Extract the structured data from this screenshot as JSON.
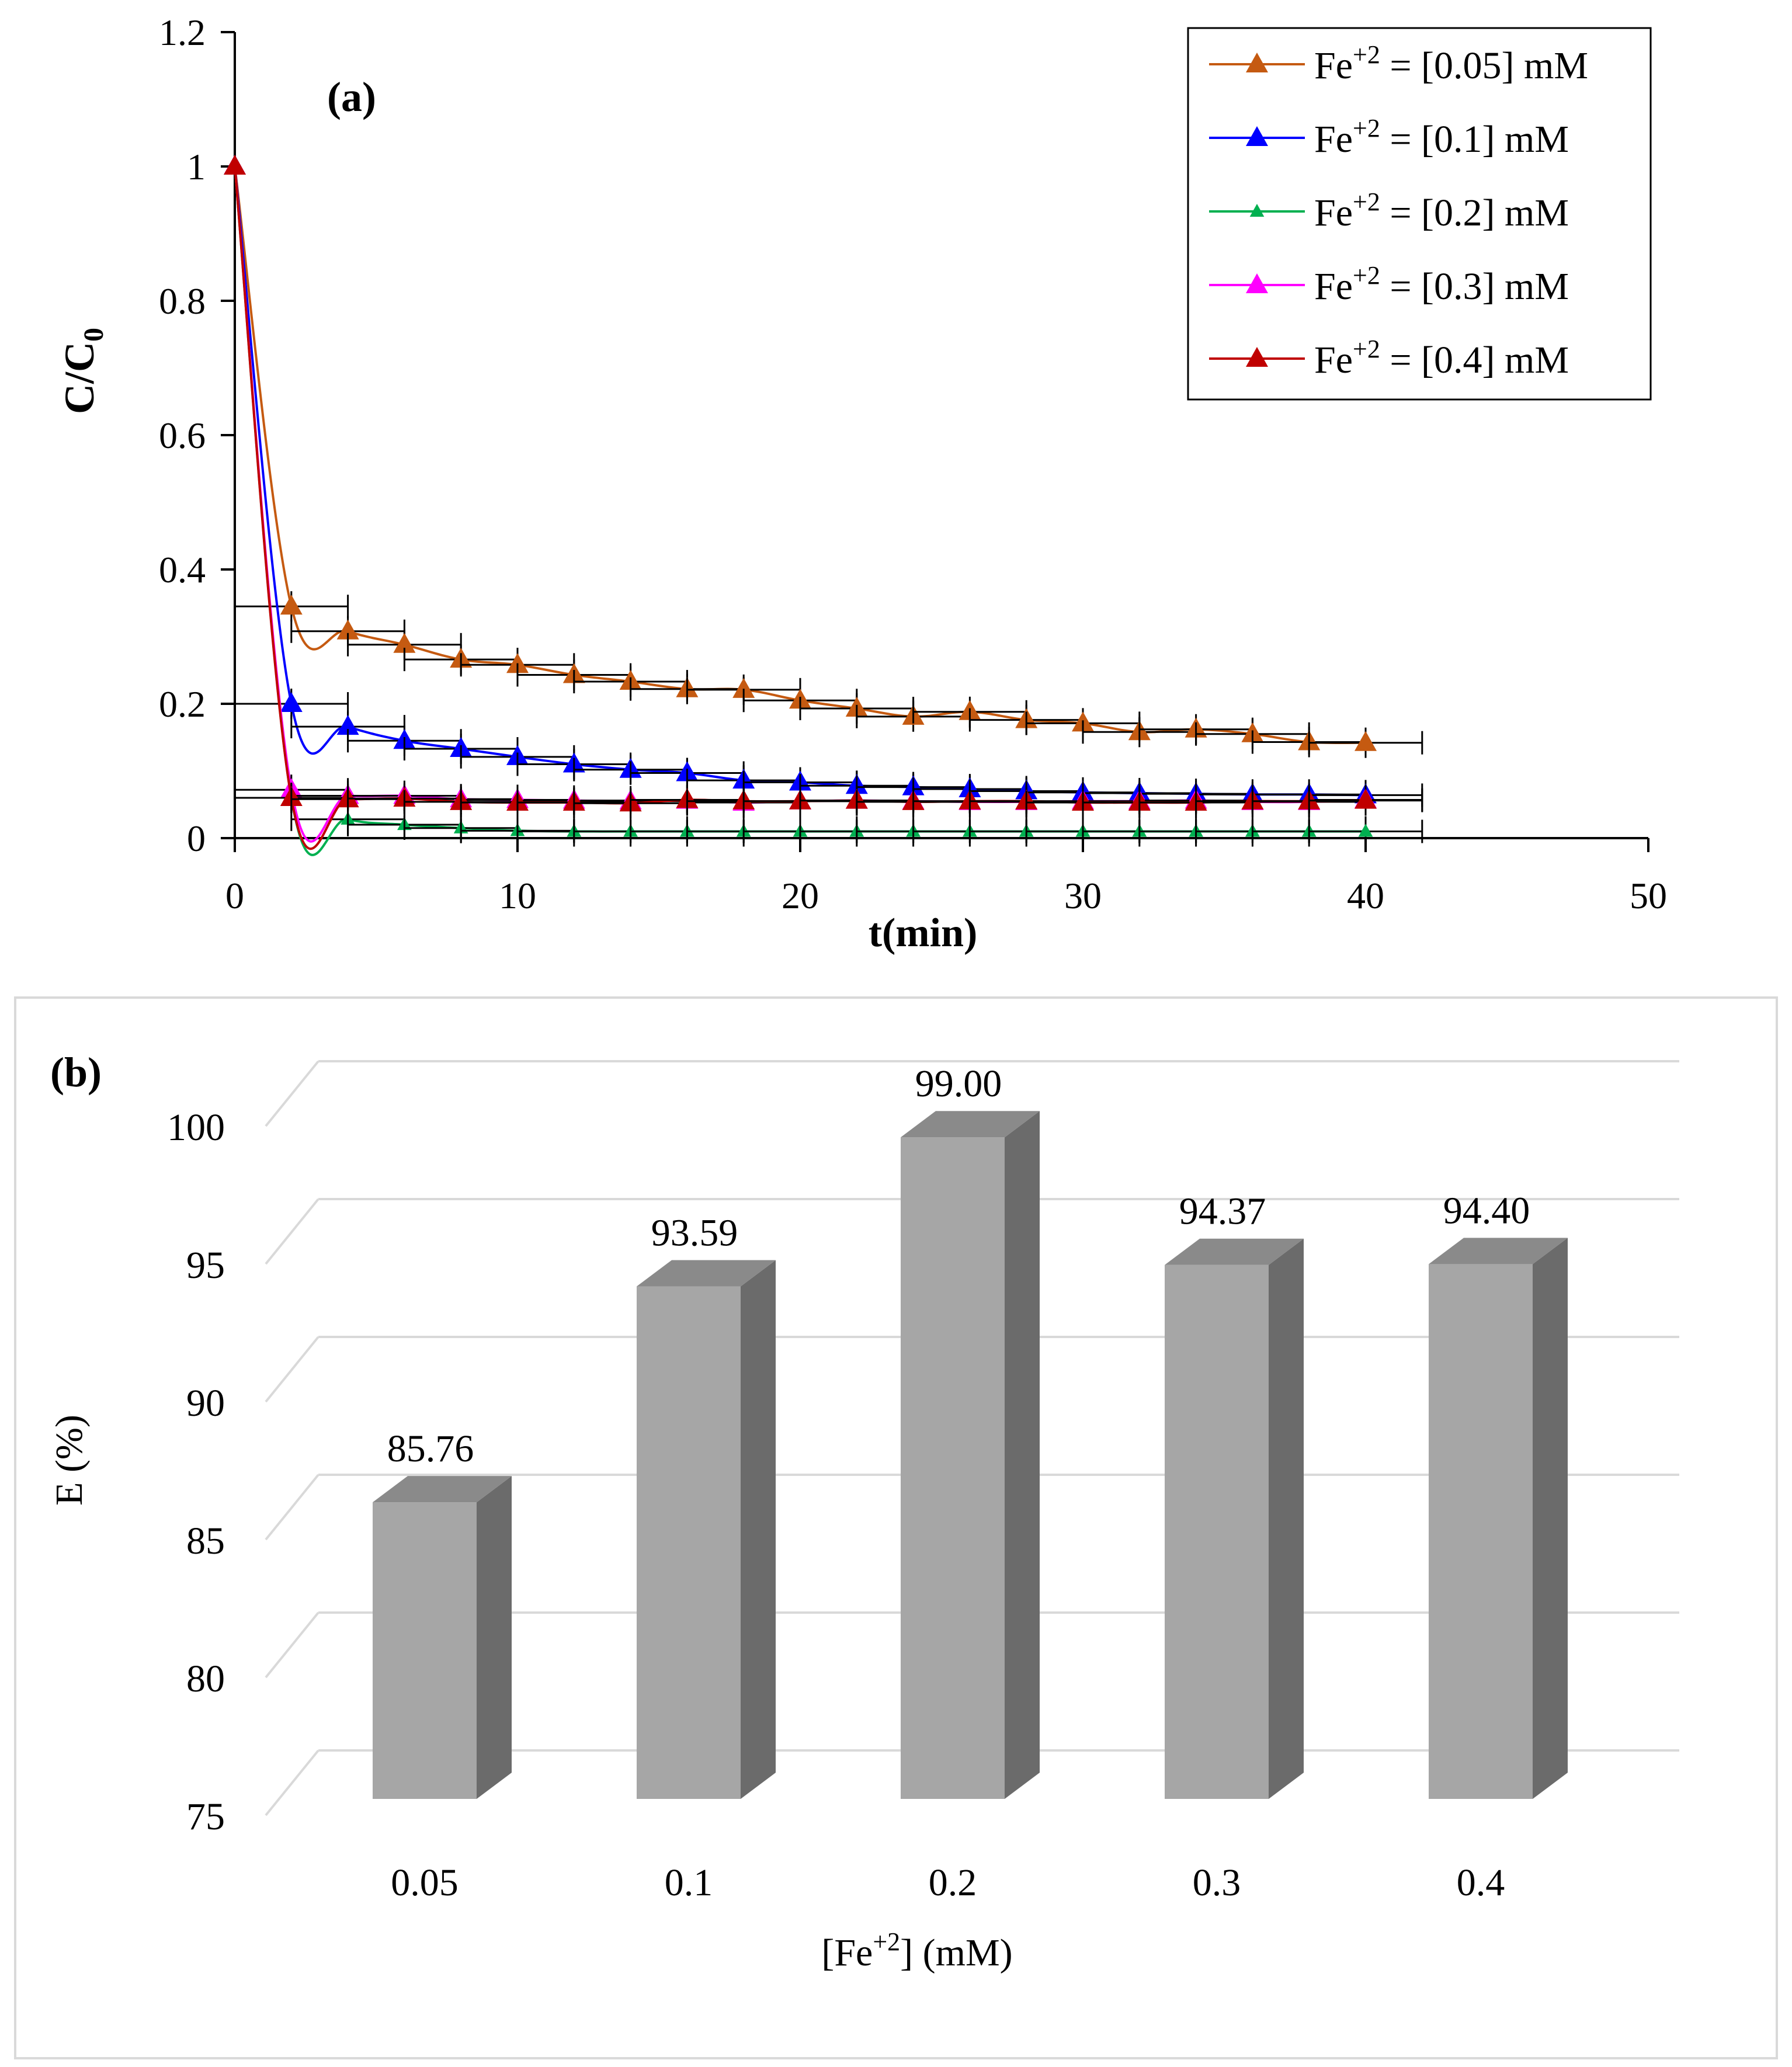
{
  "chart_data": [
    {
      "type": "line",
      "panel_label": "(a)",
      "xlabel": "t(min)",
      "ylabel": {
        "main": "C/C",
        "sub": "0"
      },
      "xlim": [
        0,
        50
      ],
      "ylim": [
        0,
        1.2
      ],
      "xticks": [
        "0",
        "10",
        "20",
        "30",
        "40",
        "50"
      ],
      "yticks": [
        "0",
        "0.2",
        "0.4",
        "0.6",
        "0.8",
        "1",
        "1.2"
      ],
      "grid": false,
      "legend_position": "top-right",
      "x": [
        0,
        2,
        4,
        6,
        8,
        10,
        12,
        14,
        16,
        18,
        20,
        22,
        24,
        26,
        28,
        30,
        32,
        34,
        36,
        38,
        40
      ],
      "series": [
        {
          "name": "Fe+2 = [0.05] mM",
          "name_parts": [
            "Fe",
            "+2",
            " = [0.05] mM"
          ],
          "color": "#C55A11",
          "values": [
            1,
            0.345,
            0.308,
            0.288,
            0.266,
            0.258,
            0.243,
            0.233,
            0.222,
            0.221,
            0.205,
            0.193,
            0.181,
            0.188,
            0.176,
            0.171,
            0.158,
            0.162,
            0.155,
            0.143,
            0.142
          ]
        },
        {
          "name": "Fe+2 = [0.1] mM",
          "name_parts": [
            "Fe",
            "+2",
            " = [0.1] mM"
          ],
          "color": "#0000FF",
          "values": [
            1,
            0.2,
            0.166,
            0.145,
            0.133,
            0.121,
            0.11,
            0.102,
            0.097,
            0.086,
            0.083,
            0.078,
            0.076,
            0.073,
            0.07,
            0.068,
            0.067,
            0.066,
            0.065,
            0.065,
            0.064
          ]
        },
        {
          "name": "Fe+2 = [0.2] mM",
          "name_parts": [
            "Fe",
            "+2",
            " = [0.2] mM"
          ],
          "color": "#00B050",
          "values": [
            1,
            0.06,
            0.028,
            0.02,
            0.015,
            0.011,
            0.01,
            0.01,
            0.01,
            0.01,
            0.01,
            0.01,
            0.01,
            0.01,
            0.01,
            0.01,
            0.01,
            0.01,
            0.01,
            0.01,
            0.01
          ]
        },
        {
          "name": "Fe+2 = [0.3] mM",
          "name_parts": [
            "Fe",
            "+2",
            " = [0.3] mM"
          ],
          "color": "#FF00FF",
          "values": [
            1,
            0.072,
            0.063,
            0.063,
            0.058,
            0.057,
            0.056,
            0.055,
            0.056,
            0.053,
            0.055,
            0.056,
            0.055,
            0.054,
            0.054,
            0.055,
            0.055,
            0.056,
            0.054,
            0.054,
            0.057
          ]
        },
        {
          "name": "Fe+2 = [0.4] mM",
          "name_parts": [
            "Fe",
            "+2",
            " = [0.4] mM"
          ],
          "color": "#C00000",
          "values": [
            1,
            0.06,
            0.058,
            0.059,
            0.054,
            0.053,
            0.053,
            0.052,
            0.057,
            0.055,
            0.055,
            0.056,
            0.054,
            0.055,
            0.055,
            0.053,
            0.053,
            0.053,
            0.055,
            0.055,
            0.056
          ]
        }
      ]
    },
    {
      "type": "bar",
      "panel_label": "(b)",
      "xlabel": {
        "main": "[Fe",
        "sup": "+2",
        "rest": "] (mM)"
      },
      "ylabel": "E (%)",
      "ylim": [
        75,
        100
      ],
      "yticks": [
        "75",
        "80",
        "85",
        "90",
        "95",
        "100"
      ],
      "grid": true,
      "categories": [
        "0.05",
        "0.1",
        "0.2",
        "0.3",
        "0.4"
      ],
      "values": [
        85.76,
        93.59,
        99.0,
        94.37,
        94.4
      ],
      "data_labels": [
        "85.76",
        "93.59",
        "99.00",
        "94.37",
        "94.40"
      ],
      "colors": {
        "front": "#A6A6A6",
        "side": "#6B6B6B",
        "top": "#8A8A8A",
        "grid": "#D9D9D9"
      }
    }
  ]
}
